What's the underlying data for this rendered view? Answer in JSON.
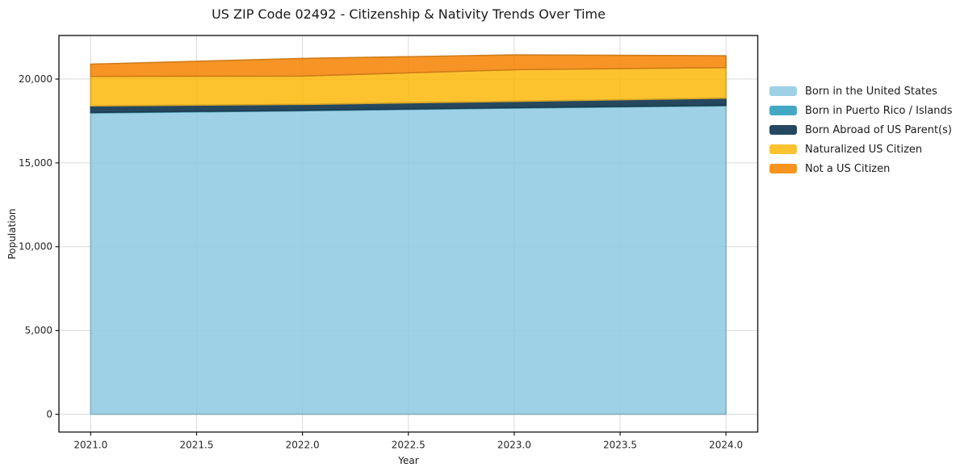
{
  "chart_data": {
    "type": "area",
    "stacked": true,
    "title": "US ZIP Code 02492 - Citizenship & Nativity Trends Over Time",
    "xlabel": "Year",
    "ylabel": "Population",
    "x": [
      2021,
      2022,
      2023,
      2024
    ],
    "series": [
      {
        "name": "Born in the United States",
        "color": "#9ed1e6",
        "values": [
          17980,
          18110,
          18270,
          18410
        ]
      },
      {
        "name": "Born in Puerto Rico / Islands",
        "color": "#44a8c5",
        "values": [
          30,
          30,
          30,
          30
        ]
      },
      {
        "name": "Born Abroad of US Parent(s)",
        "color": "#24485f",
        "values": [
          390,
          350,
          370,
          420
        ]
      },
      {
        "name": "Naturalized US Citizen",
        "color": "#fcc32f",
        "values": [
          1760,
          1690,
          1890,
          1830
        ]
      },
      {
        "name": "Not a US Citizen",
        "color": "#f7941f",
        "values": [
          730,
          1050,
          880,
          700
        ]
      }
    ],
    "totals": [
      20890,
      21230,
      21440,
      21390
    ],
    "x_tick_values": [
      2021.0,
      2021.5,
      2022.0,
      2022.5,
      2023.0,
      2023.5,
      2024.0
    ],
    "x_tick_labels": [
      "2021.0",
      "2021.5",
      "2022.0",
      "2022.5",
      "2023.0",
      "2023.5",
      "2024.0"
    ],
    "y_tick_values": [
      0,
      5000,
      10000,
      15000,
      20000
    ],
    "y_tick_labels": [
      "0",
      "5,000",
      "10,000",
      "15,000",
      "20,000"
    ],
    "xlim": [
      2020.85,
      2024.15
    ],
    "ylim": [
      -1060,
      22600
    ],
    "grid": true,
    "legend_position": "right"
  },
  "colors": {
    "background": "#ffffff",
    "spine": "#1a1a1a",
    "gridline": "#d9d9d9",
    "tick_text": "#262626"
  }
}
